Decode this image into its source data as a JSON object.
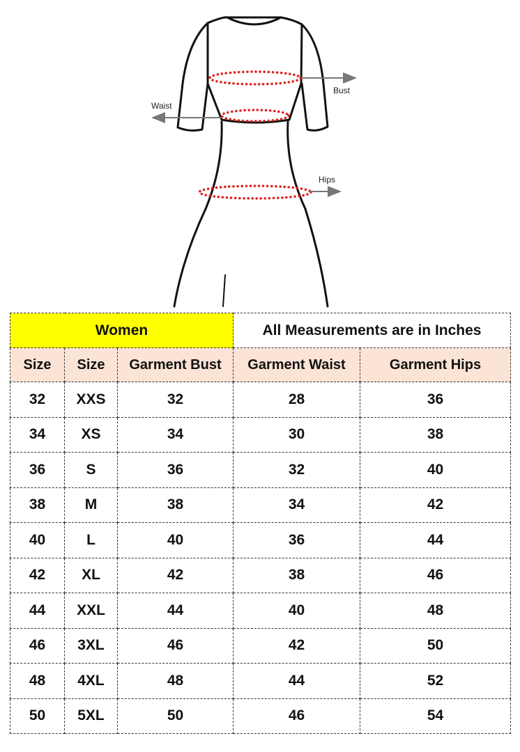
{
  "figure": {
    "labels": {
      "bust": "Bust",
      "waist": "Waist",
      "hips": "Hips"
    },
    "colors": {
      "outline": "#111111",
      "measure_dots": "#e0201c",
      "arrow": "#777777"
    }
  },
  "table": {
    "title_left": "Women",
    "title_right": "All Measurements are in Inches",
    "colors": {
      "title_left_bg": "#ffff00",
      "header_bg": "#fbe3d6"
    },
    "headers": [
      "Size",
      "Size",
      "Garment Bust",
      "Garment Waist",
      "Garment Hips"
    ],
    "rows": [
      [
        "32",
        "XXS",
        "32",
        "28",
        "36"
      ],
      [
        "34",
        "XS",
        "34",
        "30",
        "38"
      ],
      [
        "36",
        "S",
        "36",
        "32",
        "40"
      ],
      [
        "38",
        "M",
        "38",
        "34",
        "42"
      ],
      [
        "40",
        "L",
        "40",
        "36",
        "44"
      ],
      [
        "42",
        "XL",
        "42",
        "38",
        "46"
      ],
      [
        "44",
        "XXL",
        "44",
        "40",
        "48"
      ],
      [
        "46",
        "3XL",
        "46",
        "42",
        "50"
      ],
      [
        "48",
        "4XL",
        "48",
        "44",
        "52"
      ],
      [
        "50",
        "5XL",
        "50",
        "46",
        "54"
      ]
    ]
  }
}
